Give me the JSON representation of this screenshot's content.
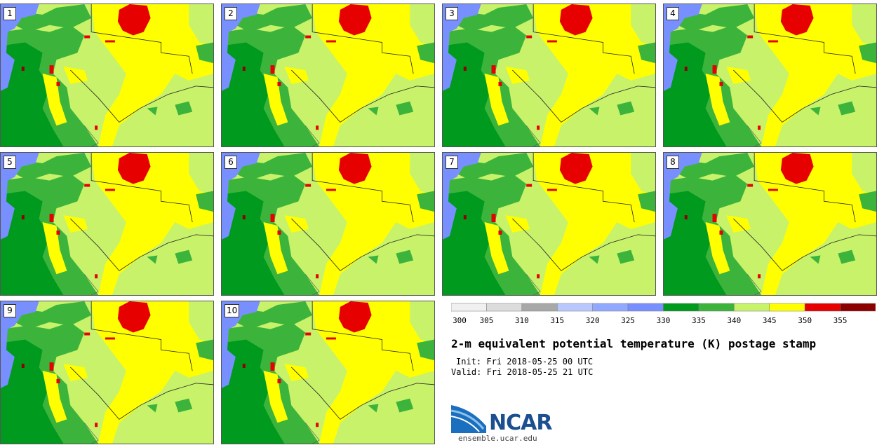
{
  "stamps": [
    {
      "label": "1"
    },
    {
      "label": "2"
    },
    {
      "label": "3"
    },
    {
      "label": "4"
    },
    {
      "label": "5"
    },
    {
      "label": "6"
    },
    {
      "label": "7"
    },
    {
      "label": "8"
    },
    {
      "label": "9"
    },
    {
      "label": "10"
    }
  ],
  "legend": {
    "unit": "K",
    "levels": [
      300,
      305,
      310,
      315,
      320,
      325,
      330,
      335,
      340,
      345,
      350,
      355
    ],
    "tick_labels": [
      "300",
      "305",
      "310",
      "315",
      "320",
      "325",
      "330",
      "335",
      "340",
      "345",
      "350",
      "355"
    ],
    "colors": [
      "#f0f0f0",
      "#dcdcdc",
      "#a8a8a8",
      "#b8c8ff",
      "#90a8ff",
      "#7890ff",
      "#009a1e",
      "#3cb43c",
      "#c8f26a",
      "#ffff00",
      "#e60000",
      "#8c0000"
    ]
  },
  "map_colors": {
    "land_base": "#c8f26a",
    "cool_blue": "#7890ff",
    "green_dark": "#009a1e",
    "green_mid": "#3cb43c",
    "warm_yellow": "#ffff00",
    "hot_red": "#e60000",
    "hot_darkred": "#8c0000"
  },
  "title": "2-m equivalent potential temperature (K) postage stamp",
  "init_line": "Init: Fri 2018-05-25 00 UTC",
  "valid_line": "Valid: Fri 2018-05-25 21 UTC",
  "logo_text": "NCAR",
  "site": "ensemble.ucar.edu"
}
